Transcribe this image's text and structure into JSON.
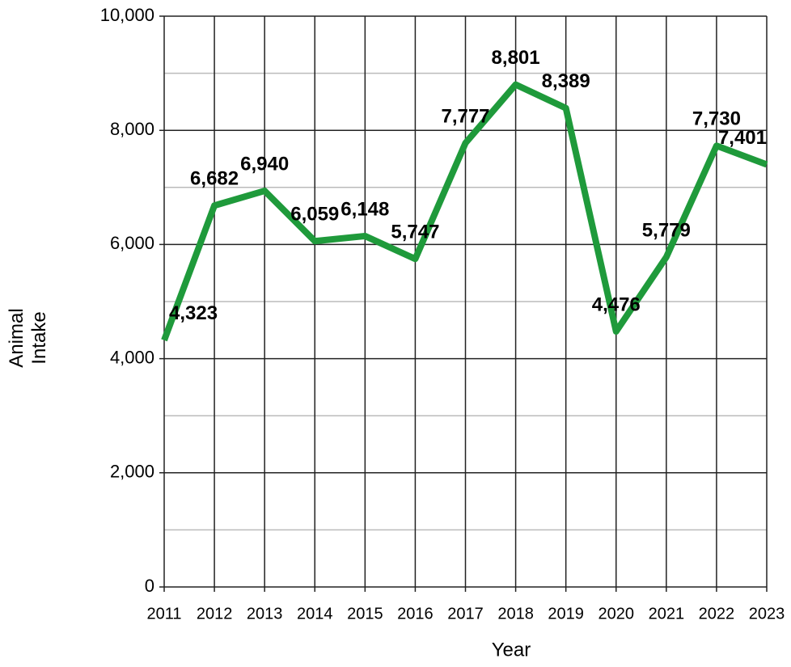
{
  "chart_data": {
    "type": "line",
    "x_label": "Year",
    "y_label": "Animal Intake",
    "x": [
      2011,
      2012,
      2013,
      2014,
      2015,
      2016,
      2017,
      2018,
      2019,
      2020,
      2021,
      2022,
      2023
    ],
    "xlim": [
      2011,
      2023
    ],
    "xticks": [
      2011,
      2012,
      2013,
      2014,
      2015,
      2016,
      2017,
      2018,
      2019,
      2020,
      2021,
      2022,
      2023
    ],
    "ylim": [
      0,
      10000
    ],
    "yticks": [
      0,
      {
        "value": 2000,
        "label": "2,000"
      },
      {
        "value": 4000,
        "label": "4,000"
      },
      {
        "value": 6000,
        "label": "6,000"
      },
      {
        "value": 8000,
        "label": "8,000"
      },
      {
        "value": 10000,
        "label": "10,000"
      }
    ],
    "yminor_ticks": [
      1000,
      3000,
      5000,
      7000,
      9000
    ],
    "grid": true,
    "series": [
      {
        "color": "#1f9a3b",
        "values": [
          4323,
          6682,
          6940,
          6059,
          6148,
          5747,
          7777,
          8801,
          8389,
          4476,
          5779,
          7730,
          7401
        ],
        "value_labels": [
          "4,323",
          "6,682",
          "6,940",
          "6,059",
          "6,148",
          "5,747",
          "7,777",
          "8,801",
          "8,389",
          "4,476",
          "5,779",
          "7,730",
          "7,401"
        ]
      }
    ]
  }
}
